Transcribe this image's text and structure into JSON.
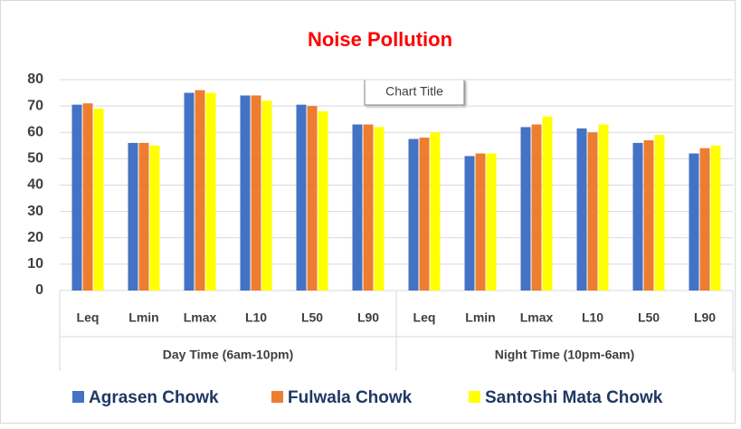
{
  "chart_data": {
    "type": "bar",
    "title": "Noise Pollution",
    "tooltip": "Chart Title",
    "categories": [
      "Leq",
      "Lmin",
      "Lmax",
      "L10",
      "L50",
      "L90",
      "Leq",
      "Lmin",
      "Lmax",
      "L10",
      "L50",
      "L90"
    ],
    "category_groups": [
      "Day Time (6am-10pm)",
      "Night Time (10pm-6am)"
    ],
    "series": [
      {
        "name": "Agrasen Chowk",
        "color": "#4472c4",
        "values": [
          70.5,
          56,
          75,
          74,
          70.5,
          63,
          57.5,
          51,
          62,
          61.5,
          56,
          52
        ]
      },
      {
        "name": "Fulwala Chowk",
        "color": "#ed7d31",
        "values": [
          71,
          56,
          76,
          74,
          70,
          63,
          58,
          52,
          63,
          60,
          57,
          54
        ]
      },
      {
        "name": "Santoshi Mata Chowk",
        "color": "#ffff00",
        "values": [
          69,
          55,
          75,
          72,
          68,
          62,
          60,
          52,
          66,
          63,
          59,
          55
        ]
      }
    ],
    "ylim": [
      0,
      80
    ],
    "yticks": [
      0,
      10,
      20,
      30,
      40,
      50,
      60,
      70,
      80
    ],
    "grid": true,
    "legend": "bottom"
  }
}
